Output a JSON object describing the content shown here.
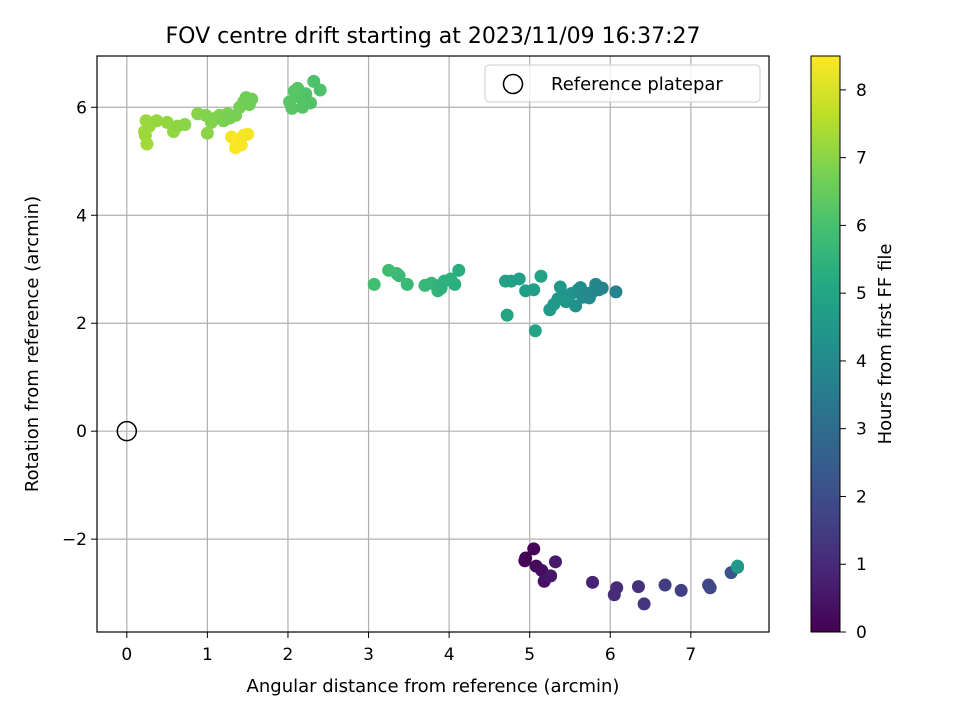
{
  "chart_data": {
    "type": "scatter",
    "title": "FOV centre drift starting at 2023/11/09 16:37:27",
    "xlabel": "Angular distance from reference (arcmin)",
    "ylabel": "Rotation from reference (arcmin)",
    "xlim": [
      -0.37,
      7.97
    ],
    "ylim": [
      -3.72,
      6.95
    ],
    "xticks": [
      0,
      1,
      2,
      3,
      4,
      5,
      6,
      7
    ],
    "yticks": [
      -2,
      0,
      2,
      4,
      6
    ],
    "grid": true,
    "legend": {
      "placement": "top-right",
      "entries": [
        "Reference platepar"
      ]
    },
    "colorbar": {
      "label": "Hours from first FF file",
      "range": [
        0,
        8.5
      ],
      "ticks": [
        0,
        1,
        2,
        3,
        4,
        5,
        6,
        7,
        8
      ],
      "colormap": "viridis"
    },
    "reference_point": {
      "x": 0,
      "y": 0,
      "marker": "open-circle"
    },
    "points": [
      [
        4.95,
        -2.35,
        0.0
      ],
      [
        4.94,
        -2.4,
        0.05
      ],
      [
        5.05,
        -2.18,
        0.1
      ],
      [
        5.08,
        -2.5,
        0.2
      ],
      [
        5.15,
        -2.58,
        0.3
      ],
      [
        5.18,
        -2.78,
        0.4
      ],
      [
        5.26,
        -2.68,
        0.5
      ],
      [
        5.32,
        -2.42,
        0.6
      ],
      [
        5.78,
        -2.8,
        0.8
      ],
      [
        6.05,
        -3.03,
        1.0
      ],
      [
        6.08,
        -2.9,
        1.05
      ],
      [
        6.35,
        -2.88,
        1.2
      ],
      [
        6.42,
        -3.2,
        1.3
      ],
      [
        6.68,
        -2.85,
        1.5
      ],
      [
        6.88,
        -2.95,
        1.6
      ],
      [
        7.22,
        -2.85,
        1.8
      ],
      [
        7.24,
        -2.9,
        1.9
      ],
      [
        7.5,
        -2.62,
        2.2
      ],
      [
        7.58,
        -2.52,
        4.2
      ],
      [
        7.58,
        -2.5,
        4.5
      ],
      [
        4.7,
        2.78,
        4.9
      ],
      [
        4.77,
        2.78,
        4.85
      ],
      [
        4.87,
        2.82,
        4.8
      ],
      [
        4.95,
        2.6,
        4.75
      ],
      [
        5.05,
        2.62,
        4.8
      ],
      [
        4.72,
        2.15,
        5.0
      ],
      [
        5.07,
        1.86,
        4.95
      ],
      [
        5.14,
        2.87,
        4.9
      ],
      [
        5.25,
        2.25,
        4.6
      ],
      [
        5.3,
        2.35,
        4.55
      ],
      [
        5.38,
        2.67,
        4.5
      ],
      [
        5.42,
        2.5,
        4.4
      ],
      [
        5.48,
        2.48,
        4.35
      ],
      [
        5.52,
        2.55,
        4.3
      ],
      [
        5.57,
        2.32,
        4.25
      ],
      [
        5.6,
        2.62,
        4.2
      ],
      [
        5.63,
        2.66,
        4.15
      ],
      [
        5.66,
        2.48,
        4.1
      ],
      [
        5.7,
        2.55,
        4.05
      ],
      [
        5.74,
        2.47,
        4.0
      ],
      [
        5.78,
        2.58,
        3.95
      ],
      [
        5.82,
        2.72,
        3.9
      ],
      [
        5.86,
        2.62,
        3.85
      ],
      [
        5.9,
        2.65,
        3.8
      ],
      [
        6.07,
        2.58,
        3.75
      ],
      [
        5.45,
        2.4,
        4.45
      ],
      [
        5.35,
        2.45,
        4.5
      ],
      [
        3.07,
        2.72,
        5.9
      ],
      [
        3.25,
        2.98,
        5.85
      ],
      [
        3.35,
        2.92,
        5.8
      ],
      [
        3.38,
        2.88,
        5.75
      ],
      [
        3.48,
        2.72,
        5.7
      ],
      [
        3.7,
        2.7,
        5.65
      ],
      [
        3.78,
        2.74,
        5.6
      ],
      [
        3.86,
        2.6,
        5.55
      ],
      [
        3.88,
        2.7,
        5.5
      ],
      [
        3.9,
        2.65,
        5.45
      ],
      [
        3.94,
        2.78,
        5.4
      ],
      [
        4.02,
        2.82,
        5.4
      ],
      [
        4.07,
        2.72,
        5.35
      ],
      [
        4.12,
        2.98,
        5.3
      ],
      [
        0.22,
        5.55,
        7.3
      ],
      [
        0.23,
        5.48,
        7.25
      ],
      [
        0.24,
        5.75,
        7.2
      ],
      [
        0.25,
        5.32,
        7.3
      ],
      [
        0.28,
        5.65,
        7.2
      ],
      [
        0.37,
        5.75,
        7.15
      ],
      [
        0.5,
        5.72,
        7.1
      ],
      [
        0.58,
        5.55,
        7.1
      ],
      [
        0.63,
        5.65,
        7.05
      ],
      [
        0.72,
        5.68,
        7.0
      ],
      [
        0.88,
        5.88,
        6.95
      ],
      [
        0.98,
        5.85,
        6.9
      ],
      [
        1.0,
        5.52,
        7.0
      ],
      [
        1.05,
        5.72,
        6.9
      ],
      [
        1.1,
        5.8,
        6.85
      ],
      [
        1.15,
        5.85,
        6.85
      ],
      [
        1.2,
        5.75,
        6.8
      ],
      [
        1.25,
        5.88,
        6.8
      ],
      [
        1.28,
        5.8,
        6.75
      ],
      [
        1.35,
        5.85,
        6.75
      ],
      [
        1.4,
        6.0,
        6.7
      ],
      [
        1.45,
        6.1,
        6.7
      ],
      [
        1.48,
        6.18,
        6.65
      ],
      [
        1.52,
        6.05,
        6.65
      ],
      [
        1.55,
        6.15,
        6.6
      ],
      [
        1.3,
        5.45,
        8.4
      ],
      [
        1.35,
        5.25,
        8.45
      ],
      [
        1.38,
        5.4,
        8.5
      ],
      [
        1.42,
        5.3,
        8.45
      ],
      [
        1.45,
        5.48,
        8.4
      ],
      [
        1.5,
        5.5,
        8.4
      ],
      [
        2.02,
        6.1,
        6.3
      ],
      [
        2.05,
        5.98,
        6.3
      ],
      [
        2.08,
        6.3,
        6.25
      ],
      [
        2.12,
        6.35,
        6.25
      ],
      [
        2.15,
        6.18,
        6.2
      ],
      [
        2.18,
        6.0,
        6.2
      ],
      [
        2.22,
        6.25,
        6.15
      ],
      [
        2.28,
        6.08,
        6.15
      ],
      [
        2.32,
        6.48,
        6.1
      ],
      [
        2.4,
        6.32,
        6.1
      ]
    ]
  }
}
